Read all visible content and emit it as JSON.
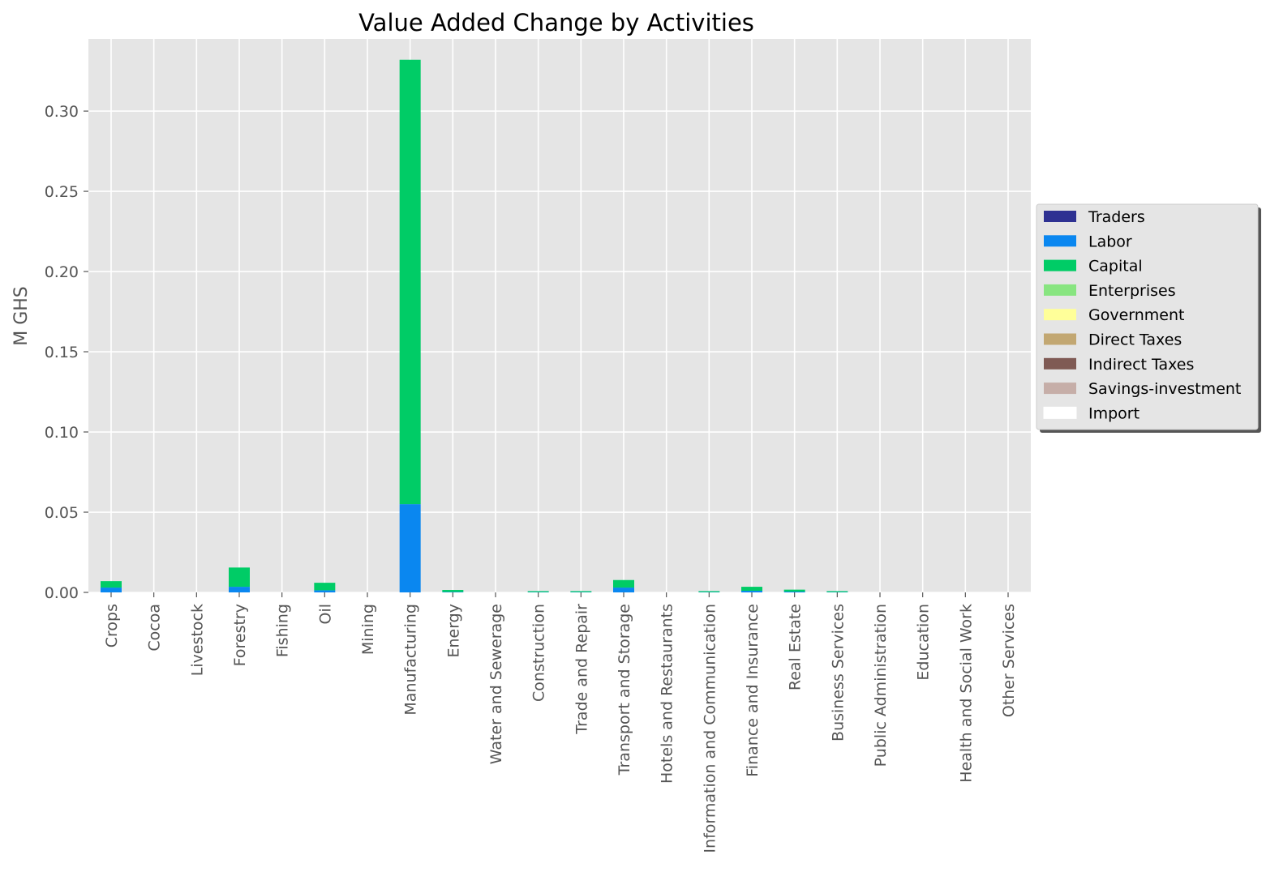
{
  "chart_data": {
    "type": "bar",
    "stacked": true,
    "title": "Value Added Change by Activities",
    "xlabel": "",
    "ylabel": "M GHS",
    "ylim": [
      0,
      0.345
    ],
    "yticks": [
      "0.00",
      "0.05",
      "0.10",
      "0.15",
      "0.20",
      "0.25",
      "0.30"
    ],
    "grid": true,
    "legend_position": "right",
    "categories": [
      "Crops",
      "Cocoa",
      "Livestock",
      "Forestry",
      "Fishing",
      "Oil",
      "Mining",
      "Manufacturing",
      "Energy",
      "Water and Sewerage",
      "Construction",
      "Trade and Repair",
      "Transport and Storage",
      "Hotels and Restaurants",
      "Information and Communication",
      "Finance and Insurance",
      "Real Estate",
      "Business Services",
      "Public Administration",
      "Education",
      "Health and Social Work",
      "Other Services"
    ],
    "series": [
      {
        "name": "Traders",
        "color": "#2e3192",
        "values": [
          0,
          0,
          0,
          0,
          0,
          0,
          0,
          0,
          0,
          0,
          0,
          0,
          0,
          0,
          0,
          0,
          0,
          0,
          0,
          0,
          0,
          0
        ]
      },
      {
        "name": "Labor",
        "color": "#0a87f0",
        "values": [
          0.003,
          0,
          0,
          0.0035,
          0,
          0.0013,
          0,
          0.055,
          0.0003,
          0,
          0.0002,
          0.0002,
          0.003,
          0,
          0.0002,
          0.001,
          0.0005,
          0.0002,
          0,
          0,
          0,
          0
        ]
      },
      {
        "name": "Capital",
        "color": "#00cc66",
        "values": [
          0.004,
          0,
          0,
          0.012,
          0,
          0.0047,
          0,
          0.277,
          0.0012,
          0,
          0.0006,
          0.0006,
          0.0047,
          0,
          0.0006,
          0.0025,
          0.0012,
          0.0006,
          0,
          0,
          0,
          0
        ]
      },
      {
        "name": "Enterprises",
        "color": "#88e580",
        "values": [
          0,
          0,
          0,
          0,
          0,
          0,
          0,
          0,
          0,
          0,
          0,
          0,
          0,
          0,
          0,
          0,
          0,
          0,
          0,
          0,
          0,
          0
        ]
      },
      {
        "name": "Government",
        "color": "#ffff99",
        "values": [
          0,
          0,
          0,
          0,
          0,
          0,
          0,
          0,
          0,
          0,
          0,
          0,
          0,
          0,
          0,
          0,
          0,
          0,
          0,
          0,
          0,
          0
        ]
      },
      {
        "name": "Direct Taxes",
        "color": "#c2a772",
        "values": [
          0,
          0,
          0,
          0,
          0,
          0,
          0,
          0,
          0,
          0,
          0,
          0,
          0,
          0,
          0,
          0,
          0,
          0,
          0,
          0,
          0,
          0
        ]
      },
      {
        "name": "Indirect Taxes",
        "color": "#7f5a54",
        "values": [
          0,
          0,
          0,
          0,
          0,
          0,
          0,
          0,
          0,
          0,
          0,
          0,
          0,
          0,
          0,
          0,
          0,
          0,
          0,
          0,
          0,
          0
        ]
      },
      {
        "name": "Savings-investment",
        "color": "#c6aea8",
        "values": [
          0,
          0,
          0,
          0,
          0,
          0,
          0,
          0,
          0,
          0,
          0,
          0,
          0,
          0,
          0,
          0,
          0,
          0,
          0,
          0,
          0,
          0
        ]
      },
      {
        "name": "Import",
        "color": "#ffffff",
        "values": [
          0,
          0,
          0,
          0,
          0,
          0,
          0,
          0,
          0,
          0,
          0,
          0,
          0,
          0,
          0,
          0,
          0,
          0,
          0,
          0,
          0,
          0
        ]
      }
    ]
  }
}
